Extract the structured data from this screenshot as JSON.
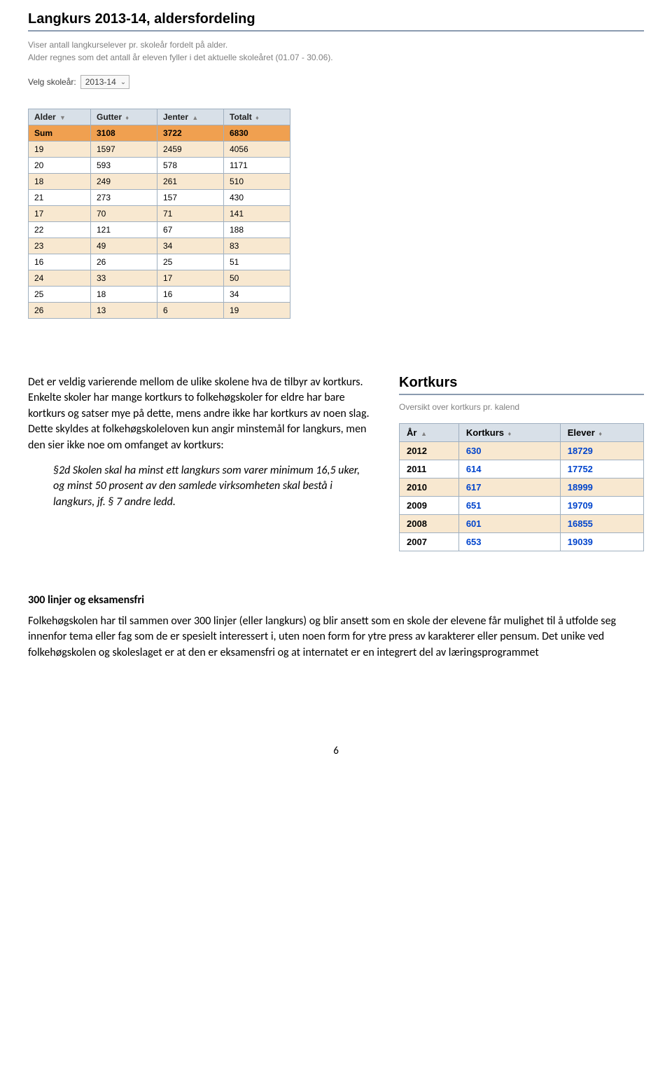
{
  "header": {
    "title": "Langkurs 2013-14, aldersfordeling",
    "subtitle_l1": "Viser antall langkurselever pr. skoleår fordelt på alder.",
    "subtitle_l2": "Alder regnes som det antall år eleven fyller i det aktuelle skoleåret (01.07 - 30.06).",
    "select_label": "Velg skoleår:",
    "select_value": "2013-14"
  },
  "age_table": {
    "columns": [
      "Alder",
      "Gutter",
      "Jenter",
      "Totalt"
    ],
    "sort_icons": [
      "▼",
      "♦",
      "▲",
      "♦"
    ],
    "sum_row": [
      "Sum",
      "3108",
      "3722",
      "6830"
    ],
    "rows": [
      [
        "19",
        "1597",
        "2459",
        "4056"
      ],
      [
        "20",
        "593",
        "578",
        "1171"
      ],
      [
        "18",
        "249",
        "261",
        "510"
      ],
      [
        "21",
        "273",
        "157",
        "430"
      ],
      [
        "17",
        "70",
        "71",
        "141"
      ],
      [
        "22",
        "121",
        "67",
        "188"
      ],
      [
        "23",
        "49",
        "34",
        "83"
      ],
      [
        "16",
        "26",
        "25",
        "51"
      ],
      [
        "24",
        "33",
        "17",
        "50"
      ],
      [
        "25",
        "18",
        "16",
        "34"
      ],
      [
        "26",
        "13",
        "6",
        "19"
      ]
    ],
    "col_widths": [
      "72px",
      "78px",
      "78px",
      "78px"
    ]
  },
  "left": {
    "p1": "Det er veldig varierende mellom de ulike skolene hva de tilbyr av kortkurs. Enkelte skoler har mange kortkurs to folkehøgskoler for eldre har bare kortkurs og satser mye på dette, mens andre ikke har kortkurs av noen slag. Dette skyldes at folkehøgskoleloven kun angir minstemål for langkurs, men den sier ikke noe om omfanget av kortkurs:",
    "quote": "§2d Skolen skal ha minst ett langkurs som varer minimum 16,5 uker, og minst 50 prosent av den samlede virksomheten skal bestå i langkurs, jf. § 7 andre ledd."
  },
  "right": {
    "title": "Kortkurs",
    "underline_color": "#8b9bb0",
    "subtitle": "Oversikt over kortkurs pr. kalend"
  },
  "kort_table": {
    "columns": [
      "År",
      "Kortkurs",
      "Elever"
    ],
    "sort_icons": [
      "▲",
      "♦",
      "♦"
    ],
    "rows": [
      [
        "2012",
        "630",
        "18729"
      ],
      [
        "2011",
        "614",
        "17752"
      ],
      [
        "2010",
        "617",
        "18999"
      ],
      [
        "2009",
        "651",
        "19709"
      ],
      [
        "2008",
        "601",
        "16855"
      ],
      [
        "2007",
        "653",
        "19039"
      ]
    ]
  },
  "section": {
    "heading": "300 linjer og eksamensfri",
    "body": "Folkehøgskolen har til sammen over 300 linjer (eller langkurs) og blir ansett som en skole der elevene får mulighet til å utfolde seg innenfor tema eller fag som de er spesielt interessert i, uten noen form for ytre press av karakterer eller pensum. Det unike ved folkehøgskolen og skoleslaget er at den er eksamensfri og at internatet er en integrert del av læringsprogrammet"
  },
  "page_number": "6"
}
